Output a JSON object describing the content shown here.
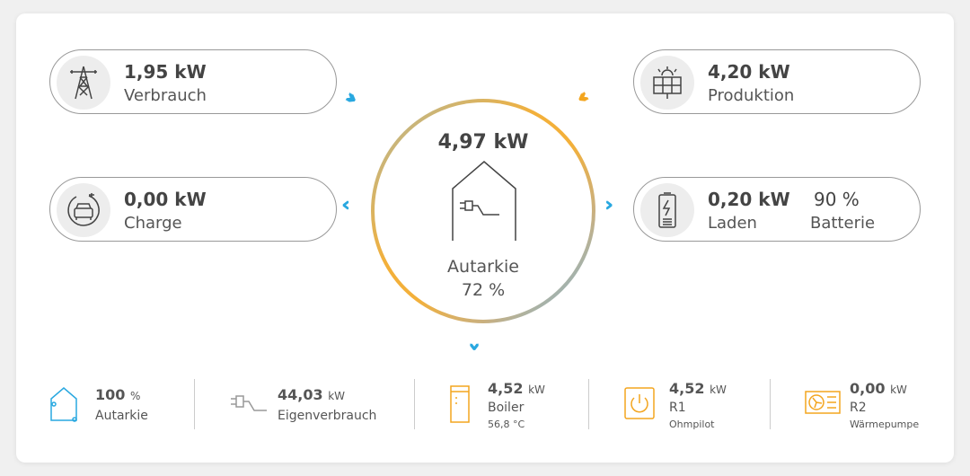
{
  "grid": {
    "value": "1,95 kW",
    "label": "Verbrauch",
    "icon": "power-tower-icon"
  },
  "charge": {
    "value": "0,00 kW",
    "label": "Charge",
    "icon": "ev-charger-icon"
  },
  "production": {
    "value": "4,20 kW",
    "label": "Produktion",
    "icon": "solar-panel-icon"
  },
  "battery": {
    "value": "0,20 kW",
    "label": "Laden",
    "percent": "90 %",
    "percent_label": "Batterie",
    "icon": "battery-icon"
  },
  "center": {
    "value": "4,97 kW",
    "label": "Autarkie",
    "percent": "72 %",
    "icon": "house-plug-icon"
  },
  "colors": {
    "blue": "#29a8e0",
    "orange": "#f3a51f"
  },
  "bottom": [
    {
      "value": "100",
      "unit": "%",
      "label": "Autarkie",
      "icon": "house-icon"
    },
    {
      "value": "44,03",
      "unit": "kW",
      "label": "Eigenverbrauch",
      "icon": "plug-icon"
    },
    {
      "value": "4,52",
      "unit": "kW",
      "label": "Boiler",
      "sub": "56,8 °C",
      "icon": "boiler-icon"
    },
    {
      "value": "4,52",
      "unit": "kW",
      "label": "R1",
      "sub": "Ohmpilot",
      "icon": "power-icon"
    },
    {
      "value": "0,00",
      "unit": "kW",
      "label": "R2",
      "sub": "Wärmepumpe",
      "icon": "heat-pump-icon"
    }
  ]
}
